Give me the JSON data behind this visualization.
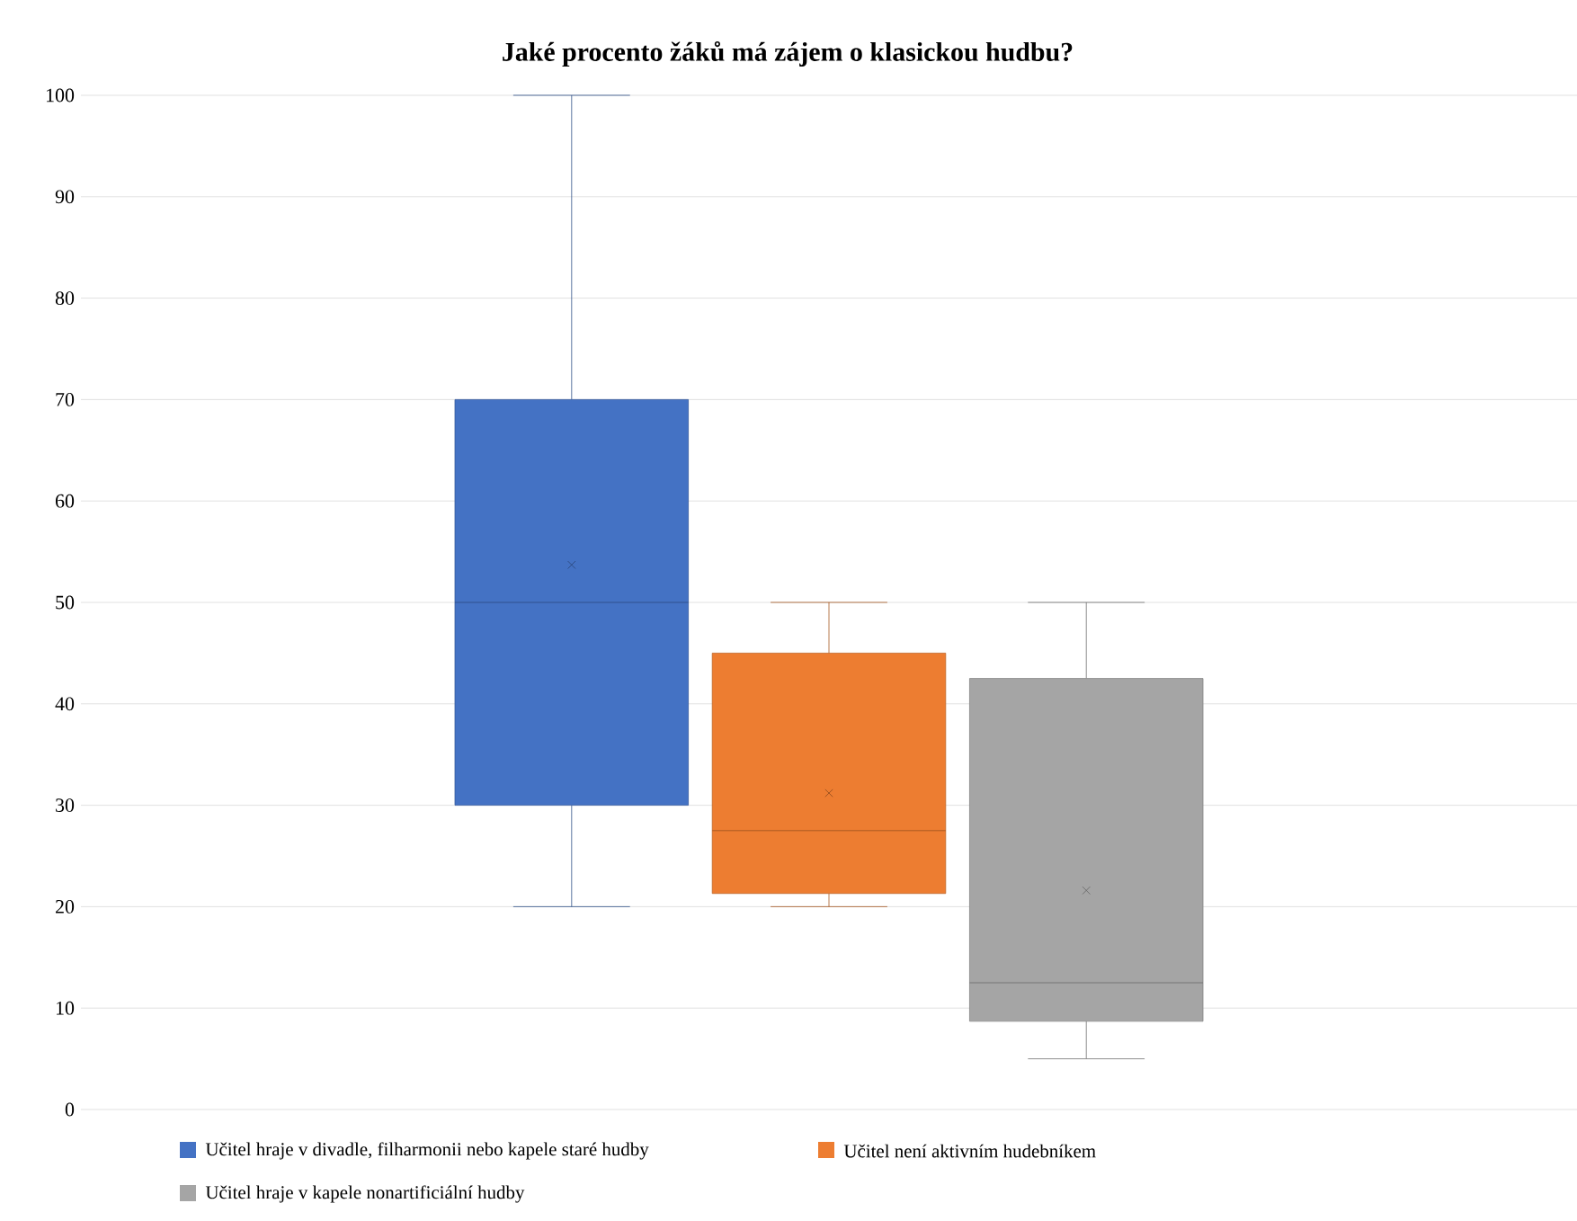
{
  "chart_data": {
    "type": "box",
    "title": "Jaké procento žáků má zájem o klasickou hudbu?",
    "categories": [
      null
    ],
    "series": [
      {
        "name": "Učitel hraje v divadle, filharmonii nebo kapele staré hudby",
        "color": "#4472c4",
        "boxes": [
          {
            "low": 20,
            "q1": 30,
            "median": 50,
            "q3": 70,
            "high": 100,
            "mean": 53.7
          }
        ]
      },
      {
        "name": "Učitel není aktivním hudebníkem",
        "color": "#ed7d31",
        "boxes": [
          {
            "low": 20,
            "q1": 21.3,
            "median": 27.5,
            "q3": 45,
            "high": 50,
            "mean": 31.2
          }
        ]
      },
      {
        "name": "Učitel hraje v kapele nonartificiální hudby",
        "color": "#a5a5a5",
        "boxes": [
          {
            "low": 5,
            "q1": 8.7,
            "median": 12.5,
            "q3": 42.5,
            "high": 50,
            "mean": 21.6
          }
        ]
      }
    ],
    "ylim": [
      0,
      100
    ],
    "yticks": [
      0,
      10,
      20,
      30,
      40,
      50,
      60,
      70,
      80,
      90,
      100
    ],
    "grid": "y",
    "legend": "bottom",
    "tick_labels": "y",
    "marker": "cross"
  }
}
